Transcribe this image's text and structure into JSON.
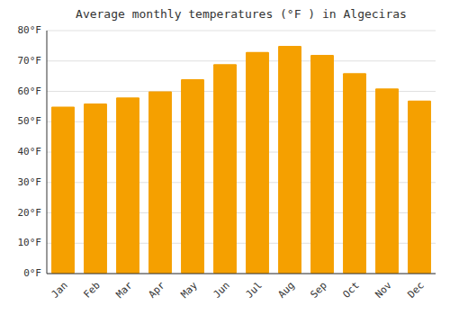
{
  "chart_data": {
    "type": "bar",
    "title": "Average monthly temperatures (°F ) in Algeciras",
    "categories": [
      "Jan",
      "Feb",
      "Mar",
      "Apr",
      "May",
      "Jun",
      "Jul",
      "Aug",
      "Sep",
      "Oct",
      "Nov",
      "Dec"
    ],
    "values": [
      55,
      56,
      58,
      60,
      64,
      69,
      73,
      75,
      72,
      66,
      61,
      57
    ],
    "color": "#F5A000",
    "ylim": [
      0,
      80
    ],
    "yticks": [
      {
        "value": 0,
        "label": "0°F"
      },
      {
        "value": 10,
        "label": "10°F"
      },
      {
        "value": 20,
        "label": "20°F"
      },
      {
        "value": 30,
        "label": "30°F"
      },
      {
        "value": 40,
        "label": "40°F"
      },
      {
        "value": 50,
        "label": "50°F"
      },
      {
        "value": 60,
        "label": "60°F"
      },
      {
        "value": 70,
        "label": "70°F"
      },
      {
        "value": 80,
        "label": "80°F"
      }
    ],
    "grid": true
  }
}
